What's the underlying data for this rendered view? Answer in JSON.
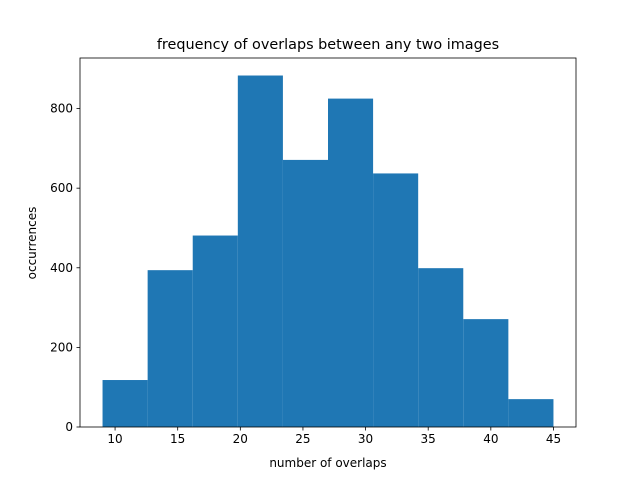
{
  "chart_data": {
    "type": "histogram",
    "title": "frequency of overlaps between any two images",
    "x_label": "number of overlaps",
    "y_label": "occurrences",
    "bins": [
      9,
      12.6,
      16.2,
      19.8,
      23.4,
      27,
      30.6,
      34.2,
      37.8,
      41.4,
      45
    ],
    "values": [
      118,
      394,
      481,
      883,
      671,
      825,
      637,
      399,
      271,
      70
    ],
    "color": "#1f77b4",
    "xlim": [
      7.2,
      46.8
    ],
    "xticks": [
      10,
      15,
      20,
      25,
      30,
      35,
      40,
      45
    ],
    "ylim": [
      0,
      927
    ],
    "yticks": [
      0,
      200,
      400,
      600,
      800
    ]
  }
}
